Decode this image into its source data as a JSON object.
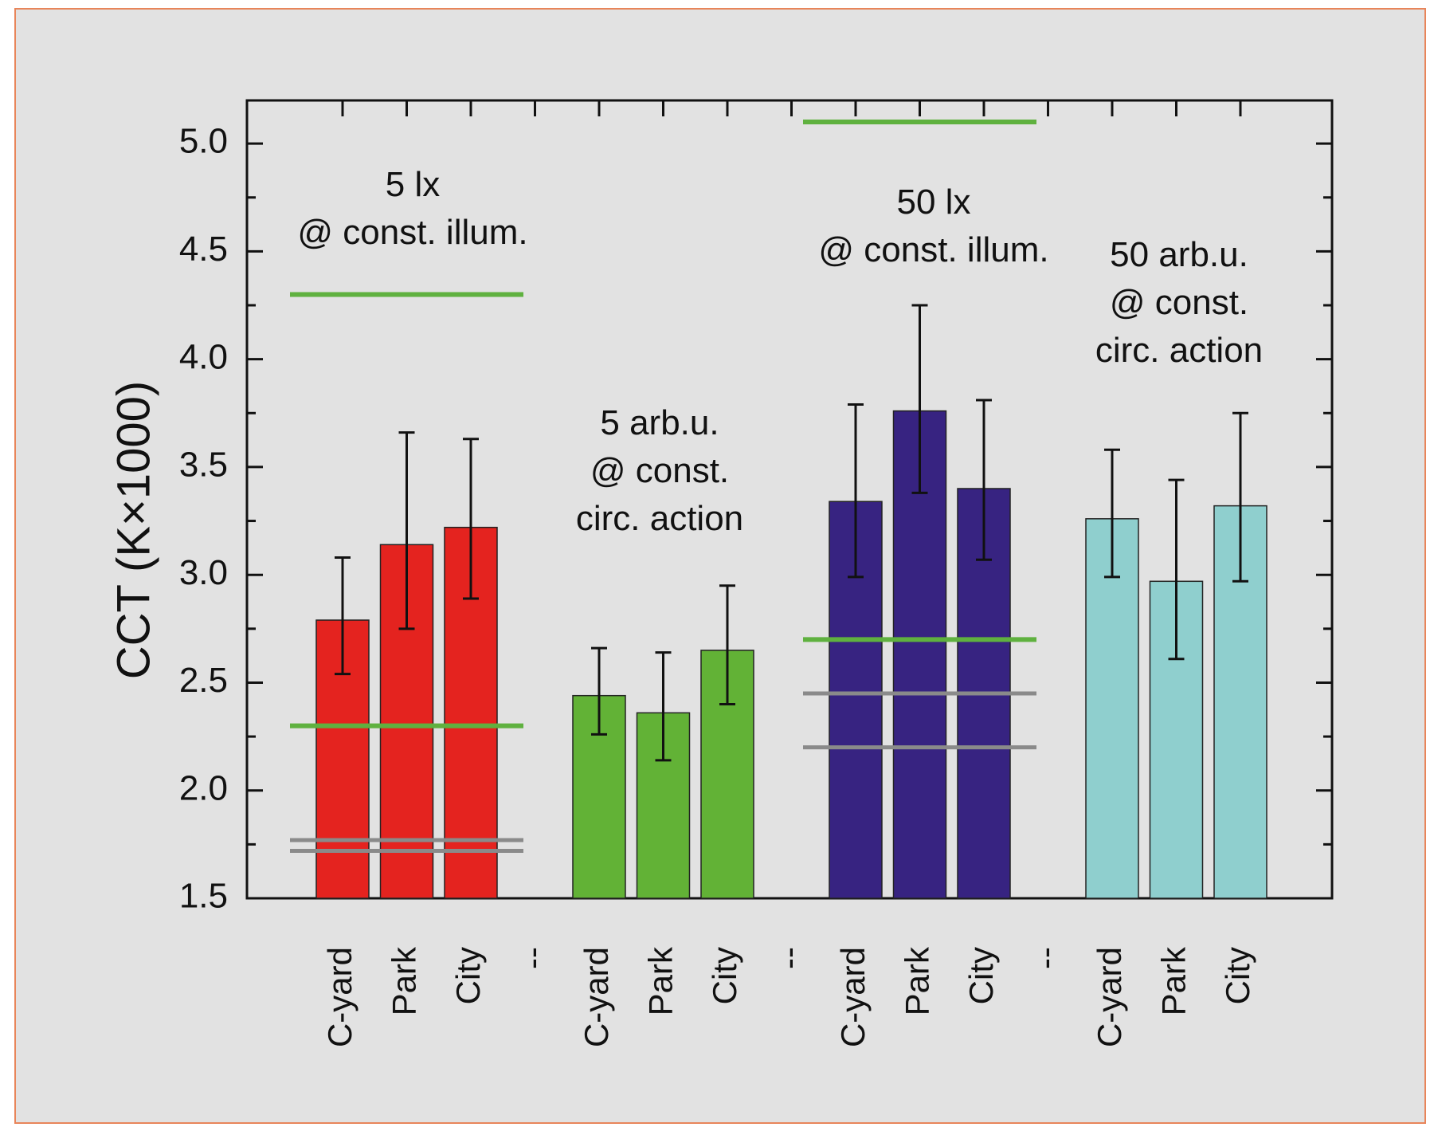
{
  "chart_data": {
    "type": "bar",
    "ylabel": "CCT (K×1000)",
    "ylim": [
      1.5,
      5.2
    ],
    "yticks": [
      "1.5",
      "2.0",
      "2.5",
      "3.0",
      "3.5",
      "4.0",
      "4.5",
      "5.0"
    ],
    "tick_values": [
      1.5,
      2.0,
      2.5,
      3.0,
      3.5,
      4.0,
      4.5,
      5.0
    ],
    "separator_label": "--",
    "groups": [
      {
        "annotation": [
          "5 lx",
          "@ const. illum."
        ],
        "color": "#e4231f",
        "categories": [
          "C-yard",
          "Park",
          "City"
        ],
        "values": [
          2.79,
          3.14,
          3.22
        ],
        "err_low": [
          2.54,
          2.75,
          2.89
        ],
        "err_high": [
          3.08,
          3.66,
          3.63
        ],
        "ref_green": [
          4.3,
          2.3
        ],
        "ref_gray": [
          1.77,
          1.72
        ]
      },
      {
        "annotation": [
          "5 arb.u.",
          "@ const.",
          "circ. action"
        ],
        "color": "#62b236",
        "categories": [
          "C-yard",
          "Park",
          "City"
        ],
        "values": [
          2.44,
          2.36,
          2.65
        ],
        "err_low": [
          2.26,
          2.14,
          2.4
        ],
        "err_high": [
          2.66,
          2.64,
          2.95
        ],
        "ref_green": [],
        "ref_gray": []
      },
      {
        "annotation": [
          "50 lx",
          "@ const. illum."
        ],
        "color": "#372381",
        "categories": [
          "C-yard",
          "Park",
          "City"
        ],
        "values": [
          3.34,
          3.76,
          3.4
        ],
        "err_low": [
          2.99,
          3.38,
          3.07
        ],
        "err_high": [
          3.79,
          4.25,
          3.81
        ],
        "ref_green": [
          5.1,
          2.7
        ],
        "ref_gray": [
          2.45,
          2.2
        ]
      },
      {
        "annotation": [
          "50 arb.u.",
          "@ const.",
          "circ. action"
        ],
        "color": "#8fcfce",
        "categories": [
          "C-yard",
          "Park",
          "City"
        ],
        "values": [
          3.26,
          2.97,
          3.32
        ],
        "err_low": [
          2.99,
          2.61,
          2.97
        ],
        "err_high": [
          3.58,
          3.44,
          3.75
        ],
        "ref_green": [],
        "ref_gray": []
      }
    ]
  }
}
